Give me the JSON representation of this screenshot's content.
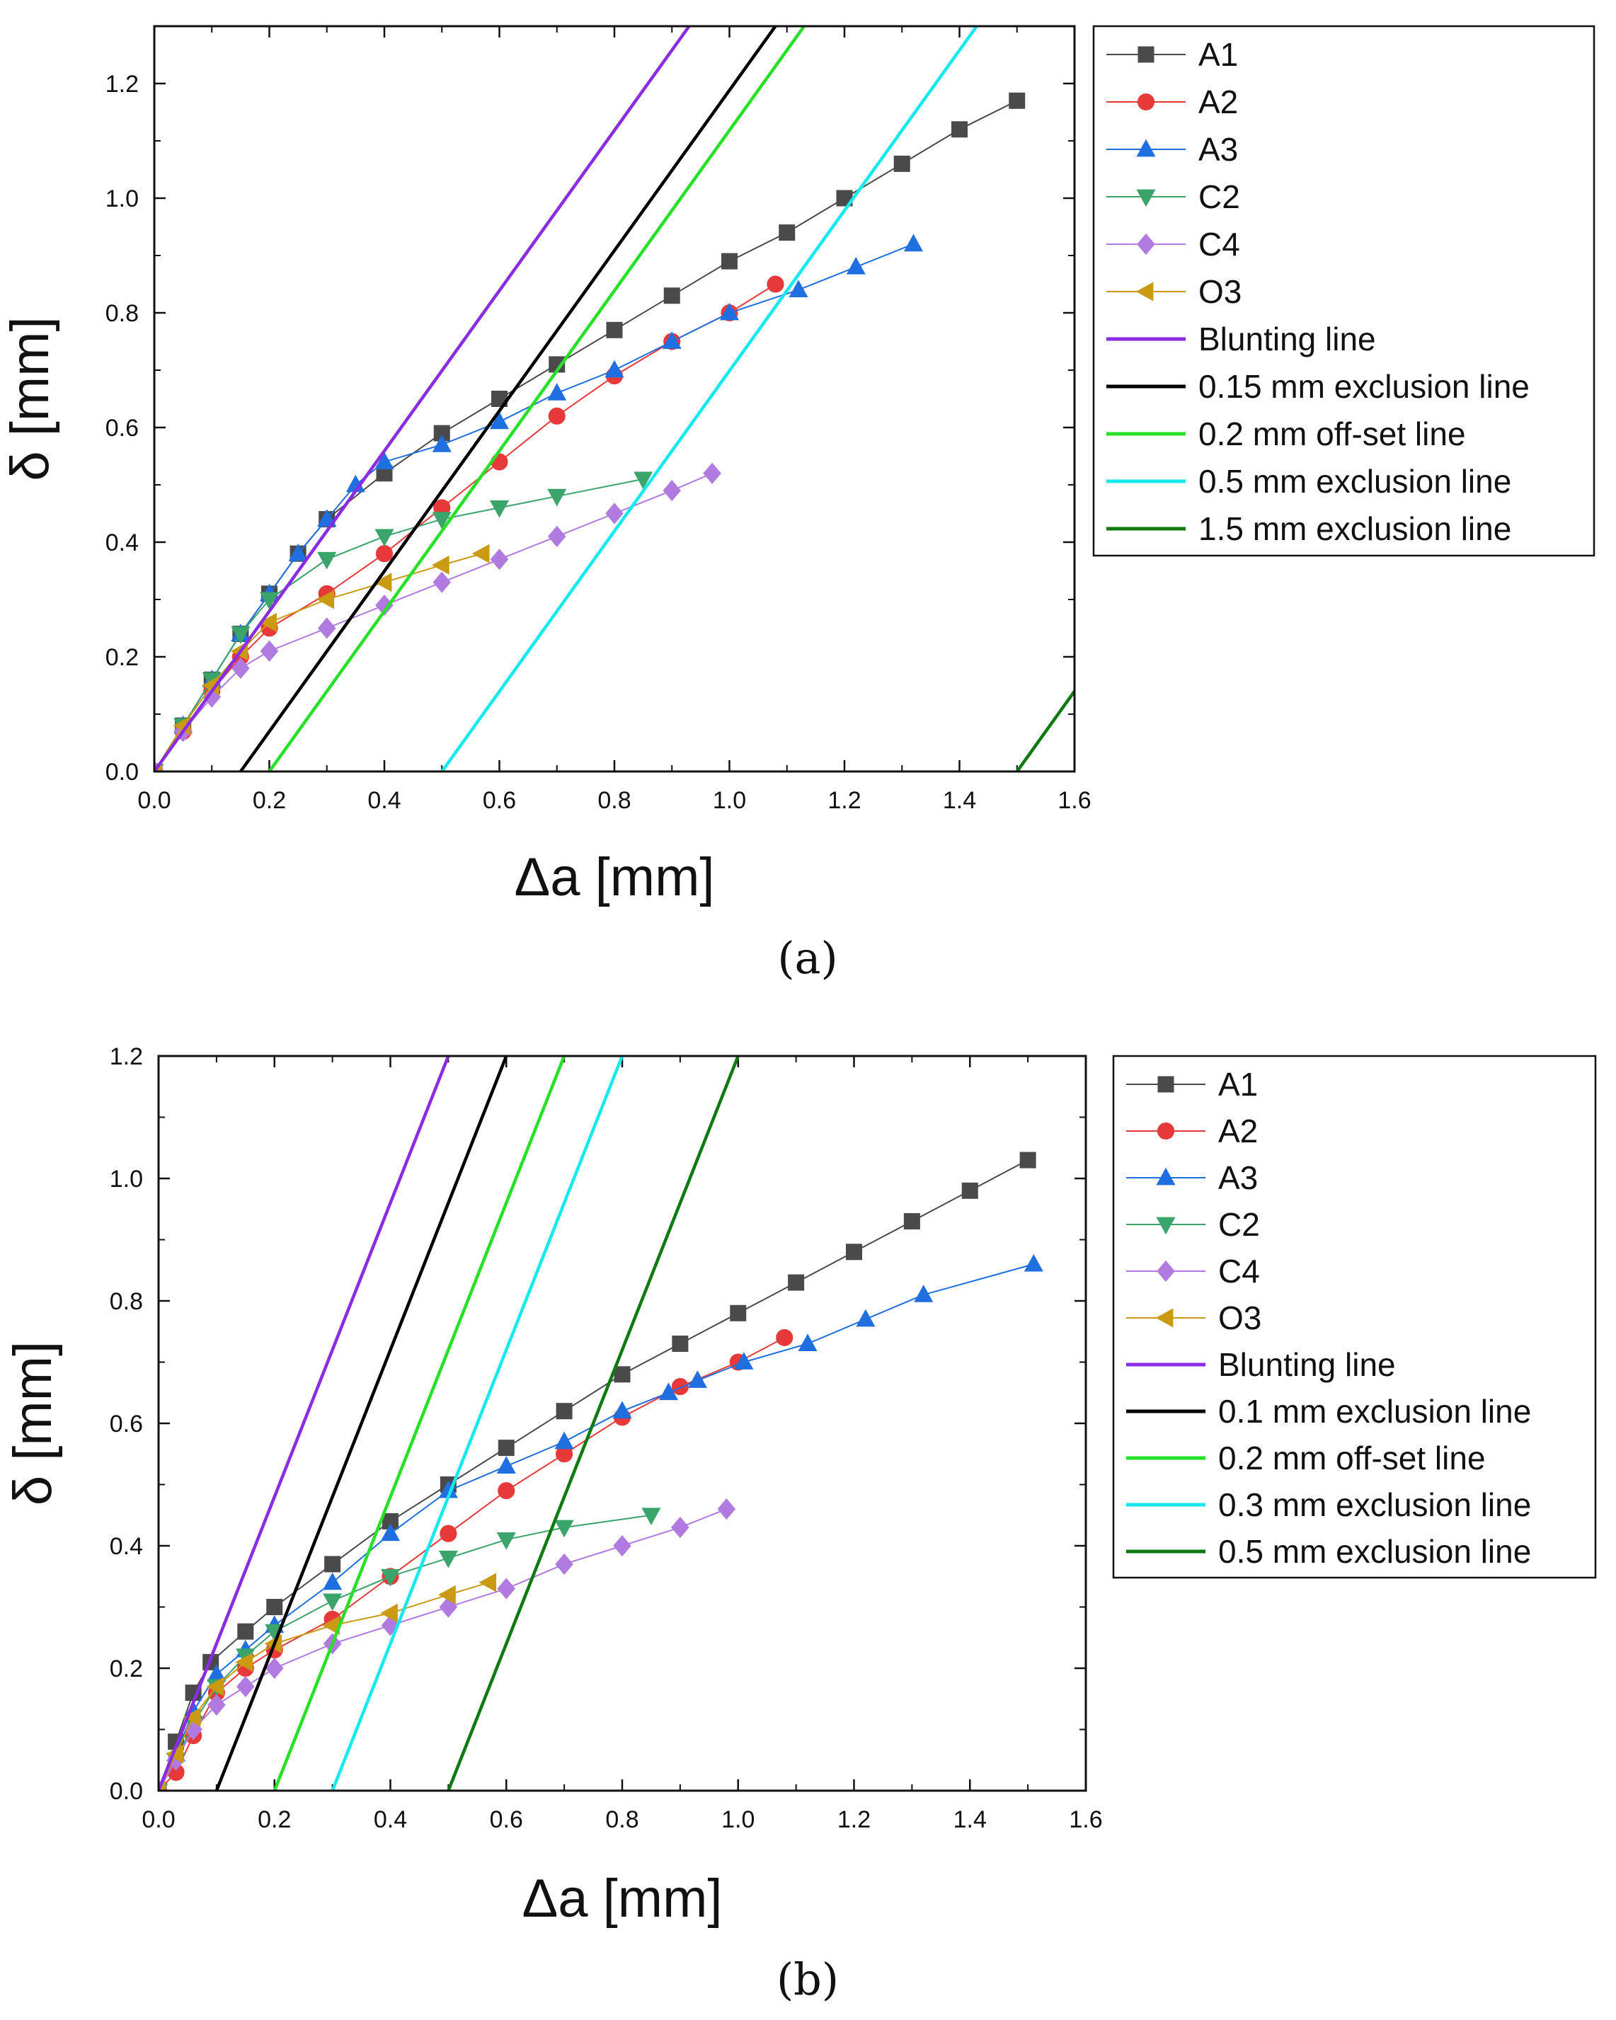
{
  "chart_data": [
    {
      "type": "scatter",
      "panel_label": "(a)",
      "xlabel": "Δa [mm]",
      "ylabel": "δ [mm]",
      "xlim": [
        0,
        1.6
      ],
      "ylim": [
        0,
        1.3
      ],
      "xticks": [
        "0.0",
        "0.2",
        "0.4",
        "0.6",
        "0.8",
        "1.0",
        "1.2",
        "1.4",
        "1.6"
      ],
      "yticks": [
        "0.0",
        "0.2",
        "0.4",
        "0.6",
        "0.8",
        "1.0",
        "1.2"
      ],
      "legend_position": "outside-right",
      "series": [
        {
          "name": "A1",
          "kind": "marker",
          "marker": "square",
          "color": "#4a4a4a",
          "points": [
            [
              0,
              0
            ],
            [
              0.05,
              0.08
            ],
            [
              0.1,
              0.16
            ],
            [
              0.15,
              0.24
            ],
            [
              0.2,
              0.31
            ],
            [
              0.25,
              0.38
            ],
            [
              0.3,
              0.44
            ],
            [
              0.4,
              0.52
            ],
            [
              0.5,
              0.59
            ],
            [
              0.6,
              0.65
            ],
            [
              0.7,
              0.71
            ],
            [
              0.8,
              0.77
            ],
            [
              0.9,
              0.83
            ],
            [
              1.0,
              0.89
            ],
            [
              1.1,
              0.94
            ],
            [
              1.2,
              1.0
            ],
            [
              1.3,
              1.06
            ],
            [
              1.4,
              1.12
            ],
            [
              1.5,
              1.17
            ]
          ]
        },
        {
          "name": "A2",
          "kind": "marker",
          "marker": "circle",
          "color": "#e8393a",
          "points": [
            [
              0,
              0
            ],
            [
              0.05,
              0.07
            ],
            [
              0.1,
              0.14
            ],
            [
              0.15,
              0.2
            ],
            [
              0.2,
              0.25
            ],
            [
              0.3,
              0.31
            ],
            [
              0.4,
              0.38
            ],
            [
              0.5,
              0.46
            ],
            [
              0.6,
              0.54
            ],
            [
              0.7,
              0.62
            ],
            [
              0.8,
              0.69
            ],
            [
              0.9,
              0.75
            ],
            [
              1.0,
              0.8
            ],
            [
              1.08,
              0.85
            ]
          ]
        },
        {
          "name": "A3",
          "kind": "marker",
          "marker": "triangle-up",
          "color": "#1f6fe0",
          "points": [
            [
              0,
              0
            ],
            [
              0.05,
              0.08
            ],
            [
              0.1,
              0.16
            ],
            [
              0.15,
              0.24
            ],
            [
              0.2,
              0.31
            ],
            [
              0.25,
              0.38
            ],
            [
              0.3,
              0.44
            ],
            [
              0.35,
              0.5
            ],
            [
              0.4,
              0.54
            ],
            [
              0.5,
              0.57
            ],
            [
              0.6,
              0.61
            ],
            [
              0.7,
              0.66
            ],
            [
              0.8,
              0.7
            ],
            [
              0.9,
              0.75
            ],
            [
              1.0,
              0.8
            ],
            [
              1.12,
              0.84
            ],
            [
              1.22,
              0.88
            ],
            [
              1.32,
              0.92
            ]
          ]
        },
        {
          "name": "C2",
          "kind": "marker",
          "marker": "triangle-down",
          "color": "#3aa46a",
          "points": [
            [
              0,
              0
            ],
            [
              0.05,
              0.08
            ],
            [
              0.1,
              0.16
            ],
            [
              0.15,
              0.24
            ],
            [
              0.2,
              0.3
            ],
            [
              0.3,
              0.37
            ],
            [
              0.4,
              0.41
            ],
            [
              0.5,
              0.44
            ],
            [
              0.6,
              0.46
            ],
            [
              0.7,
              0.48
            ],
            [
              0.85,
              0.51
            ]
          ]
        },
        {
          "name": "C4",
          "kind": "marker",
          "marker": "diamond",
          "color": "#b07ae0",
          "points": [
            [
              0,
              0
            ],
            [
              0.05,
              0.07
            ],
            [
              0.1,
              0.13
            ],
            [
              0.15,
              0.18
            ],
            [
              0.2,
              0.21
            ],
            [
              0.3,
              0.25
            ],
            [
              0.4,
              0.29
            ],
            [
              0.5,
              0.33
            ],
            [
              0.6,
              0.37
            ],
            [
              0.7,
              0.41
            ],
            [
              0.8,
              0.45
            ],
            [
              0.9,
              0.49
            ],
            [
              0.97,
              0.52
            ]
          ]
        },
        {
          "name": "O3",
          "kind": "marker",
          "marker": "triangle-left",
          "color": "#c99a12",
          "points": [
            [
              0,
              0
            ],
            [
              0.05,
              0.08
            ],
            [
              0.1,
              0.15
            ],
            [
              0.15,
              0.21
            ],
            [
              0.2,
              0.26
            ],
            [
              0.3,
              0.3
            ],
            [
              0.4,
              0.33
            ],
            [
              0.5,
              0.36
            ],
            [
              0.57,
              0.38
            ]
          ]
        },
        {
          "name": "Blunting line",
          "kind": "line",
          "color": "#8b2be2",
          "points": [
            [
              0,
              0
            ],
            [
              0.93,
              1.3
            ]
          ]
        },
        {
          "name": "0.15 mm exclusion line",
          "kind": "line",
          "color": "#000000",
          "points": [
            [
              0.15,
              0
            ],
            [
              1.08,
              1.3
            ]
          ]
        },
        {
          "name": "0.2 mm off-set line",
          "kind": "line",
          "color": "#27e027",
          "points": [
            [
              0.2,
              0
            ],
            [
              1.13,
              1.3
            ]
          ]
        },
        {
          "name": "0.5 mm exclusion line",
          "kind": "line",
          "color": "#18e8f0",
          "points": [
            [
              0.5,
              0
            ],
            [
              1.43,
              1.3
            ]
          ]
        },
        {
          "name": "1.5 mm exclusion line",
          "kind": "line",
          "color": "#0f7a0f",
          "points": [
            [
              1.5,
              0
            ],
            [
              1.6,
              0.14
            ]
          ]
        }
      ]
    },
    {
      "type": "scatter",
      "panel_label": "(b)",
      "xlabel": "Δa [mm]",
      "ylabel": "δ [mm]",
      "xlim": [
        0,
        1.6
      ],
      "ylim": [
        0,
        1.2
      ],
      "xticks": [
        "0.0",
        "0.2",
        "0.4",
        "0.6",
        "0.8",
        "1.0",
        "1.2",
        "1.4",
        "1.6"
      ],
      "yticks": [
        "0.0",
        "0.2",
        "0.4",
        "0.6",
        "0.8",
        "1.0",
        "1.2"
      ],
      "legend_position": "outside-right",
      "series": [
        {
          "name": "A1",
          "kind": "marker",
          "marker": "square",
          "color": "#4a4a4a",
          "points": [
            [
              0,
              0
            ],
            [
              0.03,
              0.08
            ],
            [
              0.06,
              0.16
            ],
            [
              0.09,
              0.21
            ],
            [
              0.15,
              0.26
            ],
            [
              0.2,
              0.3
            ],
            [
              0.3,
              0.37
            ],
            [
              0.4,
              0.44
            ],
            [
              0.5,
              0.5
            ],
            [
              0.6,
              0.56
            ],
            [
              0.7,
              0.62
            ],
            [
              0.8,
              0.68
            ],
            [
              0.9,
              0.73
            ],
            [
              1.0,
              0.78
            ],
            [
              1.1,
              0.83
            ],
            [
              1.2,
              0.88
            ],
            [
              1.3,
              0.93
            ],
            [
              1.4,
              0.98
            ],
            [
              1.5,
              1.03
            ]
          ]
        },
        {
          "name": "A2",
          "kind": "marker",
          "marker": "circle",
          "color": "#e8393a",
          "points": [
            [
              0,
              0
            ],
            [
              0.03,
              0.03
            ],
            [
              0.06,
              0.09
            ],
            [
              0.1,
              0.16
            ],
            [
              0.15,
              0.2
            ],
            [
              0.2,
              0.23
            ],
            [
              0.3,
              0.28
            ],
            [
              0.4,
              0.35
            ],
            [
              0.5,
              0.42
            ],
            [
              0.6,
              0.49
            ],
            [
              0.7,
              0.55
            ],
            [
              0.8,
              0.61
            ],
            [
              0.9,
              0.66
            ],
            [
              1.0,
              0.7
            ],
            [
              1.08,
              0.74
            ]
          ]
        },
        {
          "name": "A3",
          "kind": "marker",
          "marker": "triangle-up",
          "color": "#1f6fe0",
          "points": [
            [
              0,
              0
            ],
            [
              0.03,
              0.06
            ],
            [
              0.06,
              0.13
            ],
            [
              0.1,
              0.19
            ],
            [
              0.15,
              0.23
            ],
            [
              0.2,
              0.27
            ],
            [
              0.3,
              0.34
            ],
            [
              0.4,
              0.42
            ],
            [
              0.5,
              0.49
            ],
            [
              0.6,
              0.53
            ],
            [
              0.7,
              0.57
            ],
            [
              0.8,
              0.62
            ],
            [
              0.88,
              0.65
            ],
            [
              0.93,
              0.67
            ],
            [
              1.01,
              0.7
            ],
            [
              1.12,
              0.73
            ],
            [
              1.22,
              0.77
            ],
            [
              1.32,
              0.81
            ],
            [
              1.51,
              0.86
            ]
          ]
        },
        {
          "name": "C2",
          "kind": "marker",
          "marker": "triangle-down",
          "color": "#3aa46a",
          "points": [
            [
              0,
              0
            ],
            [
              0.03,
              0.05
            ],
            [
              0.06,
              0.11
            ],
            [
              0.1,
              0.17
            ],
            [
              0.15,
              0.22
            ],
            [
              0.2,
              0.26
            ],
            [
              0.3,
              0.31
            ],
            [
              0.4,
              0.35
            ],
            [
              0.5,
              0.38
            ],
            [
              0.6,
              0.41
            ],
            [
              0.7,
              0.43
            ],
            [
              0.85,
              0.45
            ]
          ]
        },
        {
          "name": "C4",
          "kind": "marker",
          "marker": "diamond",
          "color": "#b07ae0",
          "points": [
            [
              0,
              0
            ],
            [
              0.03,
              0.05
            ],
            [
              0.06,
              0.1
            ],
            [
              0.1,
              0.14
            ],
            [
              0.15,
              0.17
            ],
            [
              0.2,
              0.2
            ],
            [
              0.3,
              0.24
            ],
            [
              0.4,
              0.27
            ],
            [
              0.5,
              0.3
            ],
            [
              0.6,
              0.33
            ],
            [
              0.7,
              0.37
            ],
            [
              0.8,
              0.4
            ],
            [
              0.9,
              0.43
            ],
            [
              0.98,
              0.46
            ]
          ]
        },
        {
          "name": "O3",
          "kind": "marker",
          "marker": "triangle-left",
          "color": "#c99a12",
          "points": [
            [
              0,
              0
            ],
            [
              0.03,
              0.06
            ],
            [
              0.06,
              0.12
            ],
            [
              0.1,
              0.17
            ],
            [
              0.15,
              0.21
            ],
            [
              0.2,
              0.24
            ],
            [
              0.3,
              0.27
            ],
            [
              0.4,
              0.29
            ],
            [
              0.5,
              0.32
            ],
            [
              0.57,
              0.34
            ]
          ]
        },
        {
          "name": "Blunting line",
          "kind": "line",
          "color": "#8b2be2",
          "points": [
            [
              0,
              0
            ],
            [
              0.5,
              1.2
            ]
          ]
        },
        {
          "name": "0.1 mm exclusion line",
          "kind": "line",
          "color": "#000000",
          "points": [
            [
              0.1,
              0
            ],
            [
              0.6,
              1.2
            ]
          ]
        },
        {
          "name": "0.2 mm off-set line",
          "kind": "line",
          "color": "#27e027",
          "points": [
            [
              0.2,
              0
            ],
            [
              0.7,
              1.2
            ]
          ]
        },
        {
          "name": "0.3 mm exclusion line",
          "kind": "line",
          "color": "#18e8f0",
          "points": [
            [
              0.3,
              0
            ],
            [
              0.8,
              1.2
            ]
          ]
        },
        {
          "name": "0.5 mm exclusion line",
          "kind": "line",
          "color": "#0f7a0f",
          "points": [
            [
              0.5,
              0
            ],
            [
              1.0,
              1.2
            ]
          ]
        }
      ]
    }
  ]
}
